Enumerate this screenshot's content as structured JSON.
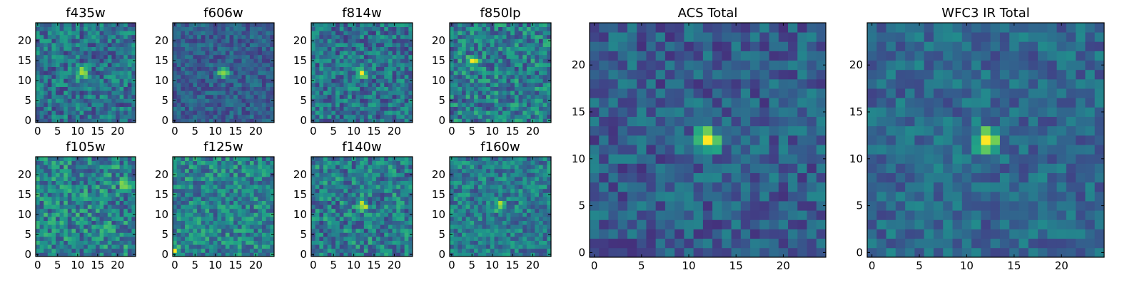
{
  "figure": {
    "description_free": true
  },
  "chart_data": [
    {
      "type": "heatmap",
      "title": "f435w",
      "grid_size": 25,
      "xticks": [
        0,
        5,
        10,
        15,
        20
      ],
      "yticks": [
        0,
        5,
        10,
        15,
        20
      ],
      "xlim": [
        0,
        25
      ],
      "ylim": [
        0,
        25
      ],
      "colormap": "viridis",
      "peak": [
        11,
        12
      ],
      "peak_value": 0.95,
      "noise": 0.22,
      "base": 0.38,
      "seed": 11
    },
    {
      "type": "heatmap",
      "title": "f606w",
      "grid_size": 25,
      "xticks": [
        0,
        5,
        10,
        15,
        20
      ],
      "yticks": [
        0,
        5,
        10,
        15,
        20
      ],
      "xlim": [
        0,
        25
      ],
      "ylim": [
        0,
        25
      ],
      "colormap": "viridis",
      "peak": [
        12,
        12
      ],
      "peak_value": 0.92,
      "noise": 0.14,
      "base": 0.3,
      "seed": 23
    },
    {
      "type": "heatmap",
      "title": "f814w",
      "grid_size": 25,
      "xticks": [
        0,
        5,
        10,
        15,
        20
      ],
      "yticks": [
        0,
        5,
        10,
        15,
        20
      ],
      "xlim": [
        0,
        25
      ],
      "ylim": [
        0,
        25
      ],
      "colormap": "viridis",
      "peak": [
        12,
        12
      ],
      "peak_value": 0.95,
      "noise": 0.22,
      "base": 0.38,
      "seed": 37
    },
    {
      "type": "heatmap",
      "title": "f850lp",
      "grid_size": 25,
      "xticks": [
        0,
        5,
        10,
        15,
        20
      ],
      "yticks": [
        0,
        5,
        10,
        15,
        20
      ],
      "xlim": [
        0,
        25
      ],
      "ylim": [
        0,
        25
      ],
      "colormap": "viridis",
      "peak": [
        5,
        15
      ],
      "peak_value": 0.95,
      "noise": 0.24,
      "base": 0.42,
      "seed": 41
    },
    {
      "type": "heatmap",
      "title": "f105w",
      "grid_size": 25,
      "xticks": [
        0,
        5,
        10,
        15,
        20
      ],
      "yticks": [
        0,
        5,
        10,
        15,
        20
      ],
      "xlim": [
        0,
        25
      ],
      "ylim": [
        0,
        25
      ],
      "colormap": "viridis",
      "peak": [
        22,
        18
      ],
      "peak_value": 0.95,
      "noise": 0.25,
      "base": 0.45,
      "seed": 53
    },
    {
      "type": "heatmap",
      "title": "f125w",
      "grid_size": 25,
      "xticks": [
        0,
        5,
        10,
        15,
        20
      ],
      "yticks": [
        0,
        5,
        10,
        15,
        20
      ],
      "xlim": [
        0,
        25
      ],
      "ylim": [
        0,
        25
      ],
      "colormap": "viridis",
      "peak": [
        0,
        1
      ],
      "peak_value": 0.95,
      "noise": 0.22,
      "base": 0.45,
      "seed": 67
    },
    {
      "type": "heatmap",
      "title": "f140w",
      "grid_size": 25,
      "xticks": [
        0,
        5,
        10,
        15,
        20
      ],
      "yticks": [
        0,
        5,
        10,
        15,
        20
      ],
      "xlim": [
        0,
        25
      ],
      "ylim": [
        0,
        25
      ],
      "colormap": "viridis",
      "peak": [
        12,
        12
      ],
      "peak_value": 0.9,
      "noise": 0.24,
      "base": 0.42,
      "seed": 79
    },
    {
      "type": "heatmap",
      "title": "f160w",
      "grid_size": 25,
      "xticks": [
        0,
        5,
        10,
        15,
        20
      ],
      "yticks": [
        0,
        5,
        10,
        15,
        20
      ],
      "xlim": [
        0,
        25
      ],
      "ylim": [
        0,
        25
      ],
      "colormap": "viridis",
      "peak": [
        12,
        12
      ],
      "peak_value": 0.95,
      "noise": 0.2,
      "base": 0.42,
      "seed": 83
    },
    {
      "type": "heatmap",
      "title": "ACS Total",
      "grid_size": 25,
      "xticks": [
        0,
        5,
        10,
        15,
        20
      ],
      "yticks": [
        0,
        5,
        10,
        15,
        20
      ],
      "xlim": [
        0,
        25
      ],
      "ylim": [
        0,
        25
      ],
      "colormap": "viridis",
      "peak": [
        12,
        12
      ],
      "peak_value": 1.0,
      "noise": 0.16,
      "base": 0.3,
      "seed": 97
    },
    {
      "type": "heatmap",
      "title": "WFC3 IR Total",
      "grid_size": 25,
      "xticks": [
        0,
        5,
        10,
        15,
        20
      ],
      "yticks": [
        0,
        5,
        10,
        15,
        20
      ],
      "xlim": [
        0,
        25
      ],
      "ylim": [
        0,
        25
      ],
      "colormap": "viridis",
      "peak": [
        12,
        12
      ],
      "peak_value": 1.0,
      "noise": 0.14,
      "base": 0.34,
      "seed": 101
    }
  ]
}
